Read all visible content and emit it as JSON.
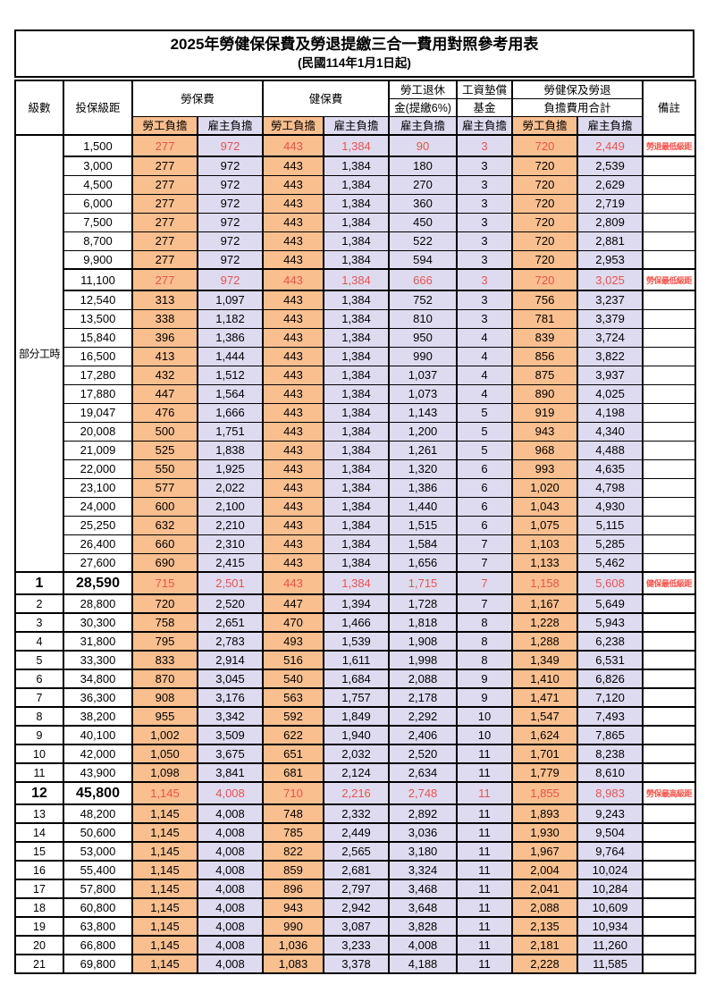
{
  "title": "2025年勞健保保費及勞退提繳三合一費用對照參考用表",
  "subtitle": "(民國114年1月1日起)",
  "header": {
    "level": "級數",
    "bracket": "投保級距",
    "labor_insurance": "勞保費",
    "health_insurance": "健保費",
    "pension_top": "勞工退休",
    "pension_bottom": "金(提繳6%)",
    "wage_fund_top": "工資墊償",
    "wage_fund_bottom": "基金",
    "total_top": "勞健保及勞退",
    "total_bottom": "負擔費用合計",
    "remark": "備註",
    "employee": "勞工負擔",
    "employer": "雇主負擔"
  },
  "part_time_label": "部分工時",
  "part_time_span": 23,
  "colors": {
    "employee_fill": "#FABF8F",
    "employer_fill": "#DEDBF1",
    "highlight_red": "#E8544B",
    "note_red": "#FA5149",
    "border": "#000000"
  },
  "rows": [
    {
      "lv": "",
      "br": "1,500",
      "v": [
        "277",
        "972",
        "443",
        "1,384",
        "90",
        "3",
        "720",
        "2,449"
      ],
      "note": "勞退最低級距",
      "hl": true,
      "big": false
    },
    {
      "lv": "",
      "br": "3,000",
      "v": [
        "277",
        "972",
        "443",
        "1,384",
        "180",
        "3",
        "720",
        "2,539"
      ],
      "note": "",
      "hl": false,
      "big": false
    },
    {
      "lv": "",
      "br": "4,500",
      "v": [
        "277",
        "972",
        "443",
        "1,384",
        "270",
        "3",
        "720",
        "2,629"
      ],
      "note": "",
      "hl": false,
      "big": false
    },
    {
      "lv": "",
      "br": "6,000",
      "v": [
        "277",
        "972",
        "443",
        "1,384",
        "360",
        "3",
        "720",
        "2,719"
      ],
      "note": "",
      "hl": false,
      "big": false
    },
    {
      "lv": "",
      "br": "7,500",
      "v": [
        "277",
        "972",
        "443",
        "1,384",
        "450",
        "3",
        "720",
        "2,809"
      ],
      "note": "",
      "hl": false,
      "big": false
    },
    {
      "lv": "",
      "br": "8,700",
      "v": [
        "277",
        "972",
        "443",
        "1,384",
        "522",
        "3",
        "720",
        "2,881"
      ],
      "note": "",
      "hl": false,
      "big": false
    },
    {
      "lv": "",
      "br": "9,900",
      "v": [
        "277",
        "972",
        "443",
        "1,384",
        "594",
        "3",
        "720",
        "2,953"
      ],
      "note": "",
      "hl": false,
      "big": false
    },
    {
      "lv": "",
      "br": "11,100",
      "v": [
        "277",
        "972",
        "443",
        "1,384",
        "666",
        "3",
        "720",
        "3,025"
      ],
      "note": "勞保最低級距",
      "hl": true,
      "big": false
    },
    {
      "lv": "",
      "br": "12,540",
      "v": [
        "313",
        "1,097",
        "443",
        "1,384",
        "752",
        "3",
        "756",
        "3,237"
      ],
      "note": "",
      "hl": false,
      "big": false
    },
    {
      "lv": "",
      "br": "13,500",
      "v": [
        "338",
        "1,182",
        "443",
        "1,384",
        "810",
        "3",
        "781",
        "3,379"
      ],
      "note": "",
      "hl": false,
      "big": false
    },
    {
      "lv": "",
      "br": "15,840",
      "v": [
        "396",
        "1,386",
        "443",
        "1,384",
        "950",
        "4",
        "839",
        "3,724"
      ],
      "note": "",
      "hl": false,
      "big": false
    },
    {
      "lv": "",
      "br": "16,500",
      "v": [
        "413",
        "1,444",
        "443",
        "1,384",
        "990",
        "4",
        "856",
        "3,822"
      ],
      "note": "",
      "hl": false,
      "big": false
    },
    {
      "lv": "",
      "br": "17,280",
      "v": [
        "432",
        "1,512",
        "443",
        "1,384",
        "1,037",
        "4",
        "875",
        "3,937"
      ],
      "note": "",
      "hl": false,
      "big": false
    },
    {
      "lv": "",
      "br": "17,880",
      "v": [
        "447",
        "1,564",
        "443",
        "1,384",
        "1,073",
        "4",
        "890",
        "4,025"
      ],
      "note": "",
      "hl": false,
      "big": false
    },
    {
      "lv": "",
      "br": "19,047",
      "v": [
        "476",
        "1,666",
        "443",
        "1,384",
        "1,143",
        "5",
        "919",
        "4,198"
      ],
      "note": "",
      "hl": false,
      "big": false
    },
    {
      "lv": "",
      "br": "20,008",
      "v": [
        "500",
        "1,751",
        "443",
        "1,384",
        "1,200",
        "5",
        "943",
        "4,340"
      ],
      "note": "",
      "hl": false,
      "big": false
    },
    {
      "lv": "",
      "br": "21,009",
      "v": [
        "525",
        "1,838",
        "443",
        "1,384",
        "1,261",
        "5",
        "968",
        "4,488"
      ],
      "note": "",
      "hl": false,
      "big": false
    },
    {
      "lv": "",
      "br": "22,000",
      "v": [
        "550",
        "1,925",
        "443",
        "1,384",
        "1,320",
        "6",
        "993",
        "4,635"
      ],
      "note": "",
      "hl": false,
      "big": false
    },
    {
      "lv": "",
      "br": "23,100",
      "v": [
        "577",
        "2,022",
        "443",
        "1,384",
        "1,386",
        "6",
        "1,020",
        "4,798"
      ],
      "note": "",
      "hl": false,
      "big": false
    },
    {
      "lv": "",
      "br": "24,000",
      "v": [
        "600",
        "2,100",
        "443",
        "1,384",
        "1,440",
        "6",
        "1,043",
        "4,930"
      ],
      "note": "",
      "hl": false,
      "big": false
    },
    {
      "lv": "",
      "br": "25,250",
      "v": [
        "632",
        "2,210",
        "443",
        "1,384",
        "1,515",
        "6",
        "1,075",
        "5,115"
      ],
      "note": "",
      "hl": false,
      "big": false
    },
    {
      "lv": "",
      "br": "26,400",
      "v": [
        "660",
        "2,310",
        "443",
        "1,384",
        "1,584",
        "7",
        "1,103",
        "5,285"
      ],
      "note": "",
      "hl": false,
      "big": false
    },
    {
      "lv": "",
      "br": "27,600",
      "v": [
        "690",
        "2,415",
        "443",
        "1,384",
        "1,656",
        "7",
        "1,133",
        "5,462"
      ],
      "note": "",
      "hl": false,
      "big": false
    },
    {
      "lv": "1",
      "br": "28,590",
      "v": [
        "715",
        "2,501",
        "443",
        "1,384",
        "1,715",
        "7",
        "1,158",
        "5,608"
      ],
      "note": "健保最低級距",
      "hl": true,
      "big": true
    },
    {
      "lv": "2",
      "br": "28,800",
      "v": [
        "720",
        "2,520",
        "447",
        "1,394",
        "1,728",
        "7",
        "1,167",
        "5,649"
      ],
      "note": "",
      "hl": false,
      "big": false
    },
    {
      "lv": "3",
      "br": "30,300",
      "v": [
        "758",
        "2,651",
        "470",
        "1,466",
        "1,818",
        "8",
        "1,228",
        "5,943"
      ],
      "note": "",
      "hl": false,
      "big": false
    },
    {
      "lv": "4",
      "br": "31,800",
      "v": [
        "795",
        "2,783",
        "493",
        "1,539",
        "1,908",
        "8",
        "1,288",
        "6,238"
      ],
      "note": "",
      "hl": false,
      "big": false
    },
    {
      "lv": "5",
      "br": "33,300",
      "v": [
        "833",
        "2,914",
        "516",
        "1,611",
        "1,998",
        "8",
        "1,349",
        "6,531"
      ],
      "note": "",
      "hl": false,
      "big": false
    },
    {
      "lv": "6",
      "br": "34,800",
      "v": [
        "870",
        "3,045",
        "540",
        "1,684",
        "2,088",
        "9",
        "1,410",
        "6,826"
      ],
      "note": "",
      "hl": false,
      "big": false
    },
    {
      "lv": "7",
      "br": "36,300",
      "v": [
        "908",
        "3,176",
        "563",
        "1,757",
        "2,178",
        "9",
        "1,471",
        "7,120"
      ],
      "note": "",
      "hl": false,
      "big": false
    },
    {
      "lv": "8",
      "br": "38,200",
      "v": [
        "955",
        "3,342",
        "592",
        "1,849",
        "2,292",
        "10",
        "1,547",
        "7,493"
      ],
      "note": "",
      "hl": false,
      "big": false
    },
    {
      "lv": "9",
      "br": "40,100",
      "v": [
        "1,002",
        "3,509",
        "622",
        "1,940",
        "2,406",
        "10",
        "1,624",
        "7,865"
      ],
      "note": "",
      "hl": false,
      "big": false
    },
    {
      "lv": "10",
      "br": "42,000",
      "v": [
        "1,050",
        "3,675",
        "651",
        "2,032",
        "2,520",
        "11",
        "1,701",
        "8,238"
      ],
      "note": "",
      "hl": false,
      "big": false
    },
    {
      "lv": "11",
      "br": "43,900",
      "v": [
        "1,098",
        "3,841",
        "681",
        "2,124",
        "2,634",
        "11",
        "1,779",
        "8,610"
      ],
      "note": "",
      "hl": false,
      "big": false
    },
    {
      "lv": "12",
      "br": "45,800",
      "v": [
        "1,145",
        "4,008",
        "710",
        "2,216",
        "2,748",
        "11",
        "1,855",
        "8,983"
      ],
      "note": "勞保最高級距",
      "hl": true,
      "big": true
    },
    {
      "lv": "13",
      "br": "48,200",
      "v": [
        "1,145",
        "4,008",
        "748",
        "2,332",
        "2,892",
        "11",
        "1,893",
        "9,243"
      ],
      "note": "",
      "hl": false,
      "big": false
    },
    {
      "lv": "14",
      "br": "50,600",
      "v": [
        "1,145",
        "4,008",
        "785",
        "2,449",
        "3,036",
        "11",
        "1,930",
        "9,504"
      ],
      "note": "",
      "hl": false,
      "big": false
    },
    {
      "lv": "15",
      "br": "53,000",
      "v": [
        "1,145",
        "4,008",
        "822",
        "2,565",
        "3,180",
        "11",
        "1,967",
        "9,764"
      ],
      "note": "",
      "hl": false,
      "big": false
    },
    {
      "lv": "16",
      "br": "55,400",
      "v": [
        "1,145",
        "4,008",
        "859",
        "2,681",
        "3,324",
        "11",
        "2,004",
        "10,024"
      ],
      "note": "",
      "hl": false,
      "big": false
    },
    {
      "lv": "17",
      "br": "57,800",
      "v": [
        "1,145",
        "4,008",
        "896",
        "2,797",
        "3,468",
        "11",
        "2,041",
        "10,284"
      ],
      "note": "",
      "hl": false,
      "big": false
    },
    {
      "lv": "18",
      "br": "60,800",
      "v": [
        "1,145",
        "4,008",
        "943",
        "2,942",
        "3,648",
        "11",
        "2,088",
        "10,609"
      ],
      "note": "",
      "hl": false,
      "big": false
    },
    {
      "lv": "19",
      "br": "63,800",
      "v": [
        "1,145",
        "4,008",
        "990",
        "3,087",
        "3,828",
        "11",
        "2,135",
        "10,934"
      ],
      "note": "",
      "hl": false,
      "big": false
    },
    {
      "lv": "20",
      "br": "66,800",
      "v": [
        "1,145",
        "4,008",
        "1,036",
        "3,233",
        "4,008",
        "11",
        "2,181",
        "11,260"
      ],
      "note": "",
      "hl": false,
      "big": false
    },
    {
      "lv": "21",
      "br": "69,800",
      "v": [
        "1,145",
        "4,008",
        "1,083",
        "3,378",
        "4,188",
        "11",
        "2,228",
        "11,585"
      ],
      "note": "",
      "hl": false,
      "big": false
    }
  ]
}
